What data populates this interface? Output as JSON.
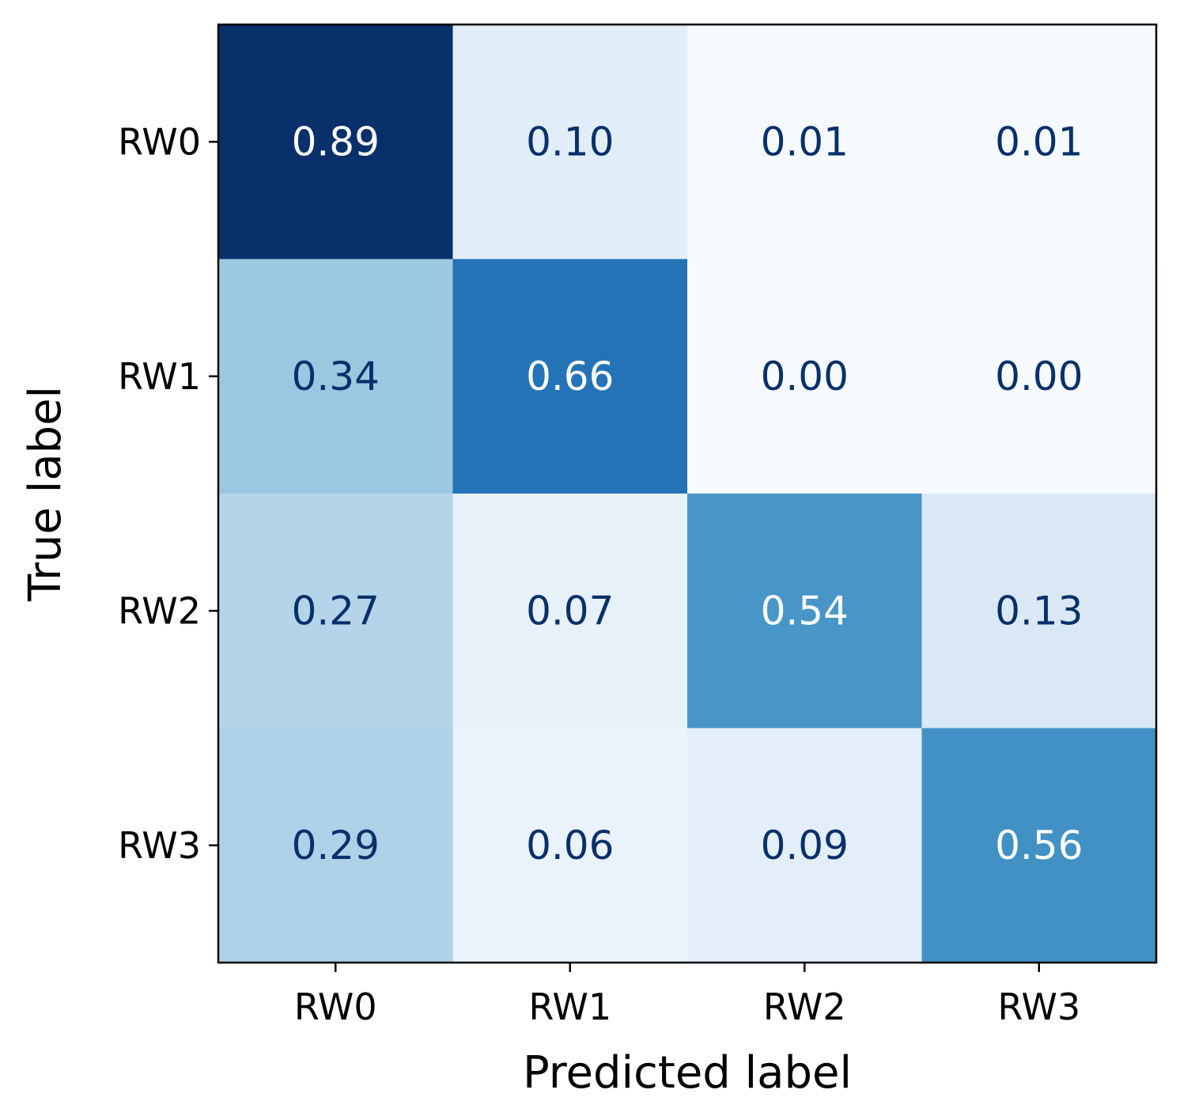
{
  "chart_data": {
    "type": "heatmap",
    "title": "",
    "xlabel": "Predicted label",
    "ylabel": "True label",
    "x_categories": [
      "RW0",
      "RW1",
      "RW2",
      "RW3"
    ],
    "y_categories": [
      "RW0",
      "RW1",
      "RW2",
      "RW3"
    ],
    "values": [
      [
        0.89,
        0.1,
        0.01,
        0.01
      ],
      [
        0.34,
        0.66,
        0.0,
        0.0
      ],
      [
        0.27,
        0.07,
        0.54,
        0.13
      ],
      [
        0.29,
        0.06,
        0.09,
        0.56
      ]
    ],
    "value_format": "0.00",
    "colormap": "Blues",
    "color_range": [
      0.0,
      0.89
    ],
    "colorbar": false,
    "grid": false,
    "text_colors": {
      "dark": "#08306b",
      "light": "#ffffff"
    }
  }
}
